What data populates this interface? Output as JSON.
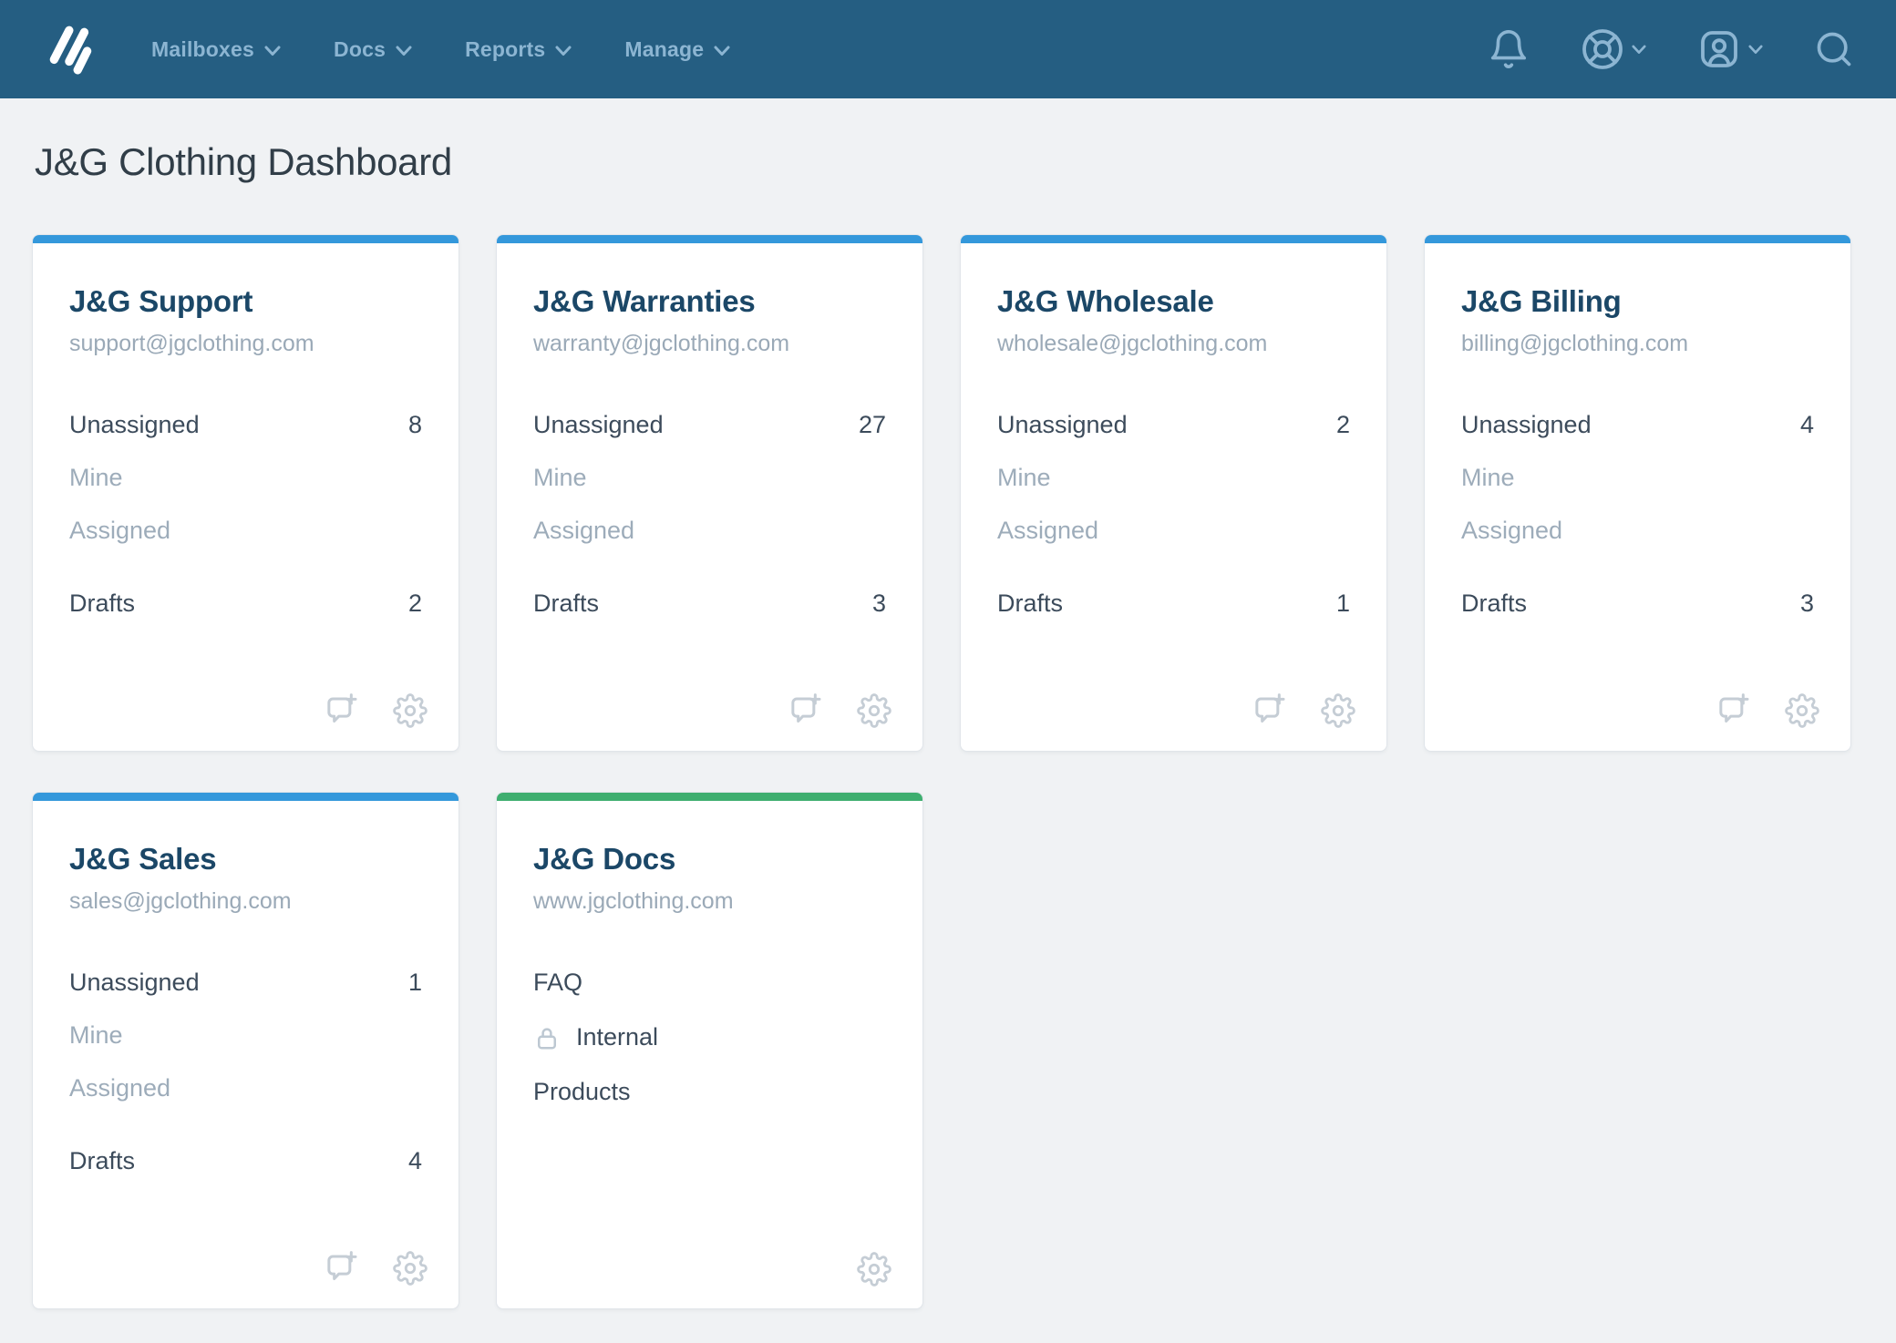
{
  "colors": {
    "navbar_bg": "#255e82",
    "nav_text": "#8cb5d2",
    "page_bg": "#f0f2f4",
    "card_title": "#1b4767",
    "row_text": "#3c4b5b",
    "muted_text": "#9dacba",
    "footer_icon": "#c5cdd5",
    "accents": {
      "blue": "#3498db",
      "green": "#3eae6f"
    }
  },
  "nav": {
    "items": [
      {
        "label": "Mailboxes"
      },
      {
        "label": "Docs"
      },
      {
        "label": "Reports"
      },
      {
        "label": "Manage"
      }
    ],
    "right_icons": [
      {
        "name": "notifications-bell-icon"
      },
      {
        "name": "help-lifebuoy-icon"
      },
      {
        "name": "account-profile-icon"
      },
      {
        "name": "search-icon"
      }
    ]
  },
  "page": {
    "title": "J&G Clothing Dashboard"
  },
  "cards": [
    {
      "type": "mailbox",
      "accent": "blue",
      "title": "J&G Support",
      "subtitle": "support@jgclothing.com",
      "rows": [
        {
          "label": "Unassigned",
          "count": "8",
          "muted": false
        },
        {
          "label": "Mine",
          "count": "",
          "muted": true
        },
        {
          "label": "Assigned",
          "count": "",
          "muted": true
        }
      ],
      "drafts": {
        "label": "Drafts",
        "count": "2"
      },
      "footer": [
        "new-conversation",
        "settings"
      ]
    },
    {
      "type": "mailbox",
      "accent": "blue",
      "title": "J&G Warranties",
      "subtitle": "warranty@jgclothing.com",
      "rows": [
        {
          "label": "Unassigned",
          "count": "27",
          "muted": false
        },
        {
          "label": "Mine",
          "count": "",
          "muted": true
        },
        {
          "label": "Assigned",
          "count": "",
          "muted": true
        }
      ],
      "drafts": {
        "label": "Drafts",
        "count": "3"
      },
      "footer": [
        "new-conversation",
        "settings"
      ]
    },
    {
      "type": "mailbox",
      "accent": "blue",
      "title": "J&G Wholesale",
      "subtitle": "wholesale@jgclothing.com",
      "rows": [
        {
          "label": "Unassigned",
          "count": "2",
          "muted": false
        },
        {
          "label": "Mine",
          "count": "",
          "muted": true
        },
        {
          "label": "Assigned",
          "count": "",
          "muted": true
        }
      ],
      "drafts": {
        "label": "Drafts",
        "count": "1"
      },
      "footer": [
        "new-conversation",
        "settings"
      ]
    },
    {
      "type": "mailbox",
      "accent": "blue",
      "title": "J&G Billing",
      "subtitle": "billing@jgclothing.com",
      "rows": [
        {
          "label": "Unassigned",
          "count": "4",
          "muted": false
        },
        {
          "label": "Mine",
          "count": "",
          "muted": true
        },
        {
          "label": "Assigned",
          "count": "",
          "muted": true
        }
      ],
      "drafts": {
        "label": "Drafts",
        "count": "3"
      },
      "footer": [
        "new-conversation",
        "settings"
      ]
    },
    {
      "type": "mailbox",
      "accent": "blue",
      "title": "J&G Sales",
      "subtitle": "sales@jgclothing.com",
      "rows": [
        {
          "label": "Unassigned",
          "count": "1",
          "muted": false
        },
        {
          "label": "Mine",
          "count": "",
          "muted": true
        },
        {
          "label": "Assigned",
          "count": "",
          "muted": true
        }
      ],
      "drafts": {
        "label": "Drafts",
        "count": "4"
      },
      "footer": [
        "new-conversation",
        "settings"
      ]
    },
    {
      "type": "docs",
      "accent": "green",
      "title": "J&G Docs",
      "subtitle": "www.jgclothing.com",
      "items": [
        {
          "label": "FAQ",
          "locked": false
        },
        {
          "label": "Internal",
          "locked": true
        },
        {
          "label": "Products",
          "locked": false
        }
      ],
      "footer": [
        "settings"
      ]
    }
  ]
}
